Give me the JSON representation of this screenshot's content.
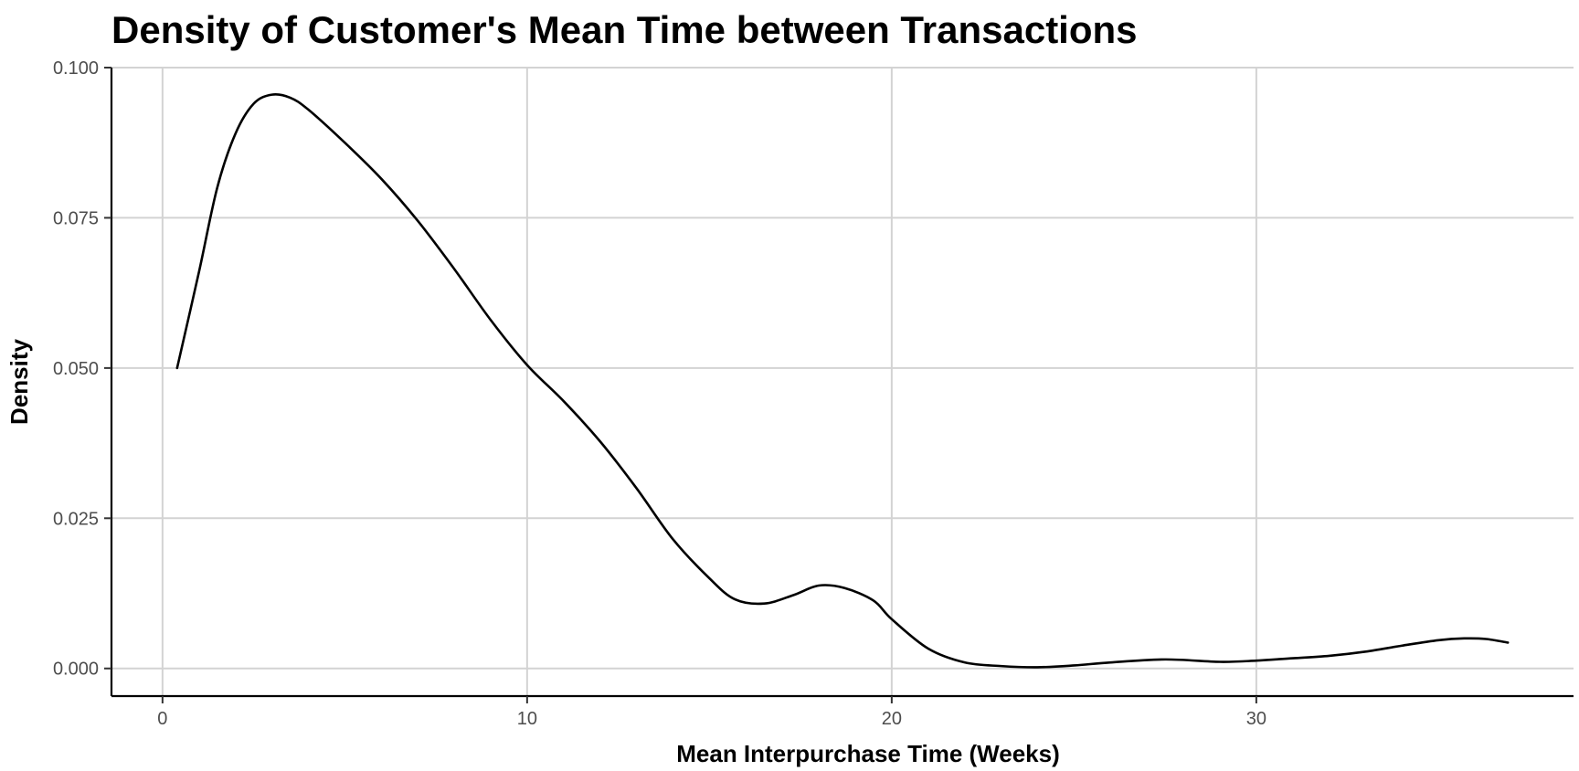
{
  "chart_data": {
    "type": "line",
    "title": "Density of Customer's Mean Time between Transactions",
    "xlabel": "Mean Interpurchase Time (Weeks)",
    "ylabel": "Density",
    "xlim": [
      -1.4,
      38.7
    ],
    "ylim": [
      -0.0046,
      0.1
    ],
    "x_ticks": [
      0,
      10,
      20,
      30
    ],
    "x_tick_labels": [
      "0",
      "10",
      "20",
      "30"
    ],
    "y_ticks": [
      0,
      0.025,
      0.05,
      0.075,
      0.1
    ],
    "y_tick_labels": [
      "0.000",
      "0.025",
      "0.050",
      "0.075",
      "0.100"
    ],
    "grid": true,
    "series": [
      {
        "x": [
          0.4,
          1.0,
          1.5,
          2.0,
          2.5,
          3.0,
          3.5,
          4.0,
          5.0,
          6.0,
          7.0,
          8.0,
          9.0,
          10.0,
          11.0,
          12.0,
          13.0,
          14.0,
          15.0,
          15.7,
          16.5,
          17.3,
          18.0,
          18.7,
          19.5,
          20.0,
          21.0,
          22.0,
          23.0,
          24.0,
          25.0,
          26.0,
          27.5,
          29.0,
          30.0,
          31.0,
          32.0,
          33.0,
          34.0,
          35.0,
          35.7,
          36.3,
          36.9
        ],
        "y": [
          0.05,
          0.066,
          0.08,
          0.089,
          0.094,
          0.0955,
          0.095,
          0.093,
          0.0875,
          0.0815,
          0.0745,
          0.0665,
          0.058,
          0.0505,
          0.0445,
          0.0378,
          0.03,
          0.0215,
          0.015,
          0.0115,
          0.0108,
          0.0122,
          0.0138,
          0.0134,
          0.0113,
          0.0082,
          0.0033,
          0.001,
          0.0004,
          0.0002,
          0.0005,
          0.001,
          0.0015,
          0.0011,
          0.0013,
          0.0017,
          0.0021,
          0.0028,
          0.0038,
          0.0047,
          0.005,
          0.0049,
          0.0043
        ]
      }
    ]
  }
}
